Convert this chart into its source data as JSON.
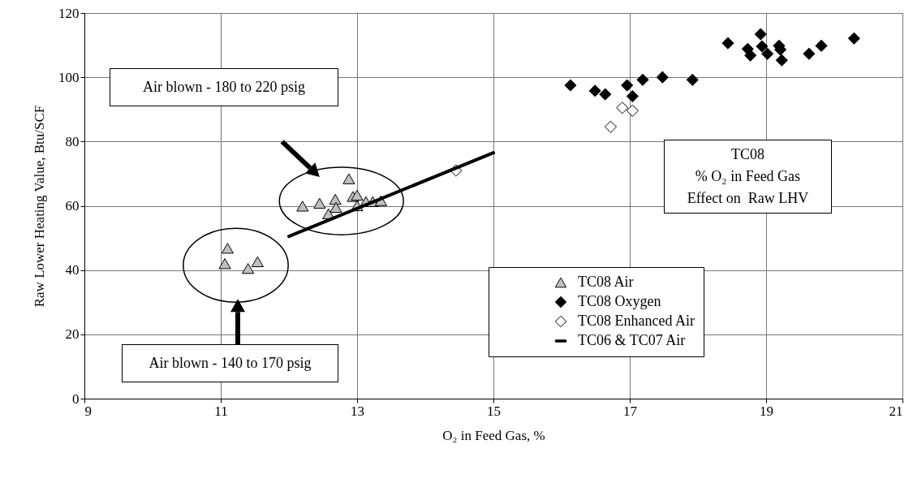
{
  "chart_data": {
    "type": "scatter",
    "xlabel": "O₂ in Feed Gas, %",
    "ylabel": "Raw Lower Heating Value, Btu/SCF",
    "xlim": [
      9,
      21
    ],
    "xticks": [
      9,
      11,
      13,
      15,
      17,
      19,
      21
    ],
    "ylim": [
      0,
      120
    ],
    "yticks": [
      0,
      20,
      40,
      60,
      80,
      100,
      120
    ],
    "grid": true,
    "legend": "bottom right",
    "annotations": [
      "Air blown - 180 to 220 psig",
      "Air blown - 140 to 170 psig",
      "TC08\n% O₂ in Feed Gas\nEffect on  Raw LHV"
    ],
    "series": [
      {
        "name": "TC08 Air",
        "marker": "triangle",
        "color": "#c0c0c0",
        "x": [
          12.88,
          12.2,
          12.45,
          12.68,
          12.69,
          12.58,
          12.94,
          13.0,
          13.0,
          13.13,
          13.23,
          13.35,
          11.1,
          11.06,
          11.4,
          11.54
        ],
        "values": [
          68.4,
          59.9,
          60.8,
          62,
          59.5,
          57.5,
          62.9,
          63.3,
          60,
          61.3,
          61.3,
          61.6,
          46.8,
          42,
          40.5,
          42.6
        ]
      },
      {
        "name": "TC08 Oxygen",
        "marker": "diamond",
        "color": "#000000",
        "x": [
          16.13,
          16.49,
          16.64,
          16.96,
          17.04,
          17.19,
          17.48,
          17.92,
          18.44,
          18.73,
          18.77,
          18.92,
          18.94,
          19.02,
          19.19,
          19.21,
          19.23,
          19.63,
          19.81,
          20.29
        ],
        "values": [
          97.5,
          95.8,
          94.7,
          97.5,
          94.1,
          99.2,
          100,
          99.2,
          110.6,
          108.8,
          106.8,
          113.4,
          109.6,
          107.3,
          109.8,
          108.6,
          105.3,
          107.3,
          109.8,
          112.1
        ]
      },
      {
        "name": "TC08 Enhanced Air",
        "marker": "diamond",
        "color": "#ffffff",
        "x": [
          16.89,
          17.04,
          16.72,
          14.45
        ],
        "values": [
          90.5,
          89.6,
          84.6,
          71
        ]
      },
      {
        "name": "TC06 & TC07 Air",
        "type": "line",
        "line_style": "solid",
        "color": "#000000",
        "x": [
          12,
          15
        ],
        "values": [
          50.5,
          76.5
        ]
      }
    ]
  }
}
